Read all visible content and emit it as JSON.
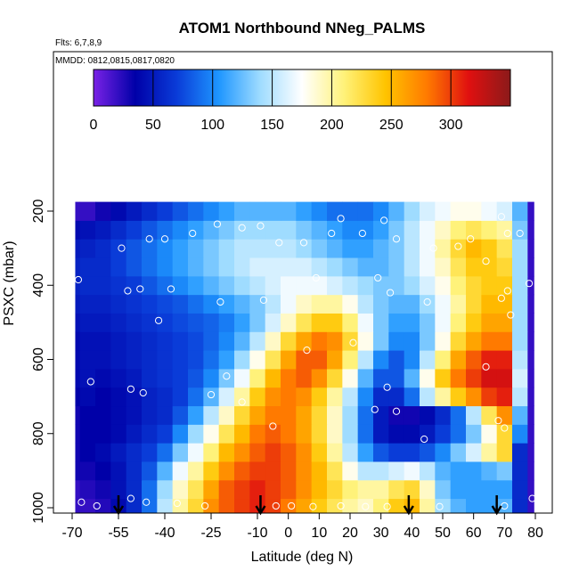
{
  "chart_data": {
    "type": "heatmap",
    "title": "ATOM1 Northbound NNeg_PALMS",
    "subtitle_flights": "Flts: 6,7,8,9",
    "subtitle_dates": "MMDD: 0812,0815,0817,0820",
    "xlabel": "Latitude (deg N)",
    "ylabel": "PSXC (mbar)",
    "xlim": [
      -70,
      80
    ],
    "ylim": [
      1000,
      0
    ],
    "x_ticks": [
      -70,
      -55,
      -40,
      -25,
      -10,
      0,
      10,
      20,
      30,
      40,
      50,
      60,
      70,
      80
    ],
    "y_ticks": [
      200,
      400,
      600,
      800,
      1000
    ],
    "colorbar": {
      "min": 0,
      "max": 350,
      "tick_values": [
        0,
        50,
        100,
        150,
        200,
        250,
        300
      ],
      "colors": [
        "#7a22e6",
        "#0000a8",
        "#0a3cd8",
        "#1e96ff",
        "#9fdcff",
        "#ffffff",
        "#fff27a",
        "#ffc400",
        "#ff7a00",
        "#e01010",
        "#8b1a1a"
      ]
    },
    "pressure_levels": [
      1000,
      950,
      900,
      850,
      800,
      750,
      700,
      650,
      600,
      550,
      500,
      450,
      400,
      350,
      300,
      250,
      200
    ],
    "latitudes": [
      -70,
      -65,
      -60,
      -55,
      -50,
      -45,
      -40,
      -35,
      -30,
      -25,
      -20,
      -15,
      -10,
      -5,
      0,
      5,
      10,
      15,
      20,
      25,
      30,
      35,
      40,
      45,
      50,
      55,
      60,
      65,
      70,
      75,
      80
    ],
    "values": [
      [
        20,
        20,
        25,
        40,
        60,
        90,
        150,
        200,
        230,
        270,
        290,
        300,
        310,
        300,
        280,
        260,
        240,
        220,
        200,
        190,
        210,
        240,
        250,
        200,
        140,
        120,
        110,
        110,
        120,
        60,
        20
      ],
      [
        20,
        25,
        30,
        45,
        60,
        90,
        140,
        190,
        220,
        260,
        290,
        300,
        310,
        300,
        290,
        270,
        250,
        230,
        210,
        200,
        200,
        220,
        230,
        190,
        130,
        110,
        110,
        110,
        110,
        60,
        20
      ],
      [
        30,
        30,
        35,
        45,
        60,
        80,
        120,
        170,
        200,
        240,
        270,
        290,
        300,
        300,
        290,
        270,
        250,
        220,
        180,
        150,
        150,
        160,
        170,
        150,
        120,
        110,
        110,
        120,
        130,
        60,
        20
      ],
      [
        30,
        35,
        40,
        50,
        60,
        70,
        90,
        130,
        170,
        210,
        250,
        270,
        290,
        300,
        290,
        270,
        240,
        200,
        150,
        110,
        80,
        70,
        70,
        80,
        100,
        130,
        160,
        200,
        230,
        60,
        20
      ],
      [
        30,
        35,
        35,
        40,
        50,
        60,
        70,
        100,
        140,
        180,
        220,
        250,
        280,
        290,
        280,
        260,
        230,
        190,
        140,
        90,
        50,
        40,
        40,
        50,
        70,
        90,
        130,
        180,
        230,
        100,
        20
      ],
      [
        30,
        35,
        35,
        40,
        45,
        55,
        60,
        80,
        110,
        150,
        190,
        230,
        260,
        280,
        280,
        260,
        230,
        190,
        140,
        90,
        50,
        30,
        30,
        40,
        60,
        90,
        150,
        220,
        270,
        120,
        20
      ],
      [
        35,
        40,
        35,
        40,
        45,
        55,
        60,
        70,
        90,
        120,
        160,
        200,
        240,
        270,
        280,
        270,
        240,
        200,
        150,
        100,
        60,
        60,
        90,
        150,
        200,
        240,
        270,
        300,
        310,
        150,
        20
      ],
      [
        40,
        45,
        40,
        45,
        50,
        60,
        65,
        70,
        80,
        100,
        130,
        170,
        210,
        250,
        280,
        290,
        270,
        230,
        180,
        120,
        80,
        80,
        120,
        180,
        240,
        280,
        300,
        320,
        320,
        160,
        20
      ],
      [
        40,
        45,
        45,
        50,
        55,
        60,
        65,
        70,
        75,
        90,
        110,
        140,
        180,
        220,
        260,
        290,
        290,
        260,
        210,
        150,
        100,
        80,
        100,
        150,
        210,
        260,
        290,
        310,
        310,
        150,
        20
      ],
      [
        40,
        45,
        45,
        50,
        55,
        60,
        65,
        70,
        75,
        85,
        100,
        120,
        150,
        190,
        230,
        260,
        280,
        270,
        230,
        180,
        130,
        100,
        100,
        130,
        180,
        230,
        260,
        280,
        280,
        140,
        20
      ],
      [
        45,
        50,
        50,
        55,
        60,
        65,
        70,
        75,
        80,
        85,
        95,
        110,
        130,
        160,
        190,
        220,
        240,
        240,
        210,
        170,
        130,
        110,
        110,
        130,
        170,
        210,
        240,
        260,
        260,
        140,
        20
      ],
      [
        50,
        55,
        55,
        60,
        65,
        70,
        75,
        80,
        90,
        100,
        110,
        120,
        130,
        150,
        170,
        190,
        200,
        200,
        180,
        150,
        130,
        120,
        120,
        140,
        170,
        200,
        230,
        250,
        250,
        140,
        20
      ],
      [
        55,
        60,
        60,
        65,
        70,
        80,
        90,
        100,
        110,
        120,
        130,
        140,
        150,
        160,
        170,
        170,
        170,
        160,
        150,
        140,
        130,
        130,
        140,
        160,
        180,
        210,
        230,
        240,
        240,
        140,
        20
      ],
      [
        55,
        60,
        60,
        70,
        80,
        90,
        100,
        110,
        120,
        130,
        140,
        150,
        160,
        160,
        160,
        160,
        150,
        140,
        130,
        120,
        120,
        130,
        150,
        170,
        190,
        220,
        240,
        240,
        230,
        140,
        20
      ],
      [
        50,
        55,
        60,
        70,
        80,
        90,
        100,
        110,
        120,
        130,
        140,
        150,
        150,
        150,
        150,
        140,
        130,
        120,
        110,
        110,
        120,
        130,
        150,
        170,
        200,
        230,
        250,
        240,
        220,
        140,
        20
      ],
      [
        40,
        45,
        50,
        60,
        70,
        80,
        90,
        100,
        110,
        120,
        130,
        140,
        140,
        140,
        140,
        130,
        120,
        110,
        100,
        100,
        110,
        130,
        150,
        170,
        190,
        210,
        220,
        210,
        200,
        130,
        20
      ],
      [
        20,
        20,
        30,
        40,
        50,
        60,
        70,
        80,
        90,
        100,
        110,
        120,
        120,
        120,
        120,
        110,
        100,
        90,
        90,
        90,
        100,
        120,
        140,
        160,
        170,
        180,
        180,
        170,
        160,
        120,
        20
      ]
    ],
    "profile_markers_lat": [
      -55,
      -9,
      39,
      67.5
    ],
    "sample_points": [
      [
        -67,
        985
      ],
      [
        -62,
        995
      ],
      [
        -51,
        975
      ],
      [
        -46,
        985
      ],
      [
        -36,
        988
      ],
      [
        -27,
        995
      ],
      [
        -4,
        995
      ],
      [
        1,
        995
      ],
      [
        8,
        997
      ],
      [
        17,
        995
      ],
      [
        25,
        997
      ],
      [
        32,
        997
      ],
      [
        49,
        997
      ],
      [
        70,
        995
      ],
      [
        79,
        975
      ],
      [
        -64,
        660
      ],
      [
        -51,
        680
      ],
      [
        -47,
        690
      ],
      [
        -25,
        695
      ],
      [
        -20,
        645
      ],
      [
        -15,
        715
      ],
      [
        -5,
        780
      ],
      [
        6,
        575
      ],
      [
        21,
        555
      ],
      [
        28,
        735
      ],
      [
        32,
        675
      ],
      [
        35,
        740
      ],
      [
        44,
        815
      ],
      [
        64,
        620
      ],
      [
        68,
        765
      ],
      [
        70,
        785
      ],
      [
        72,
        480
      ],
      [
        -68,
        385
      ],
      [
        -52,
        415
      ],
      [
        -48,
        410
      ],
      [
        -42,
        495
      ],
      [
        -38,
        410
      ],
      [
        -22,
        445
      ],
      [
        -8,
        440
      ],
      [
        9,
        380
      ],
      [
        29,
        380
      ],
      [
        33,
        420
      ],
      [
        45,
        445
      ],
      [
        69,
        435
      ],
      [
        71,
        415
      ],
      [
        78,
        395
      ],
      [
        -54,
        300
      ],
      [
        -45,
        275
      ],
      [
        -40,
        275
      ],
      [
        -31,
        260
      ],
      [
        -23,
        235
      ],
      [
        -15,
        245
      ],
      [
        -9,
        240
      ],
      [
        -3,
        285
      ],
      [
        5,
        285
      ],
      [
        14,
        260
      ],
      [
        17,
        220
      ],
      [
        24,
        260
      ],
      [
        31,
        225
      ],
      [
        35,
        275
      ],
      [
        47,
        300
      ],
      [
        55,
        295
      ],
      [
        59,
        275
      ],
      [
        64,
        335
      ],
      [
        69,
        215
      ],
      [
        71,
        260
      ],
      [
        75,
        260
      ]
    ]
  }
}
